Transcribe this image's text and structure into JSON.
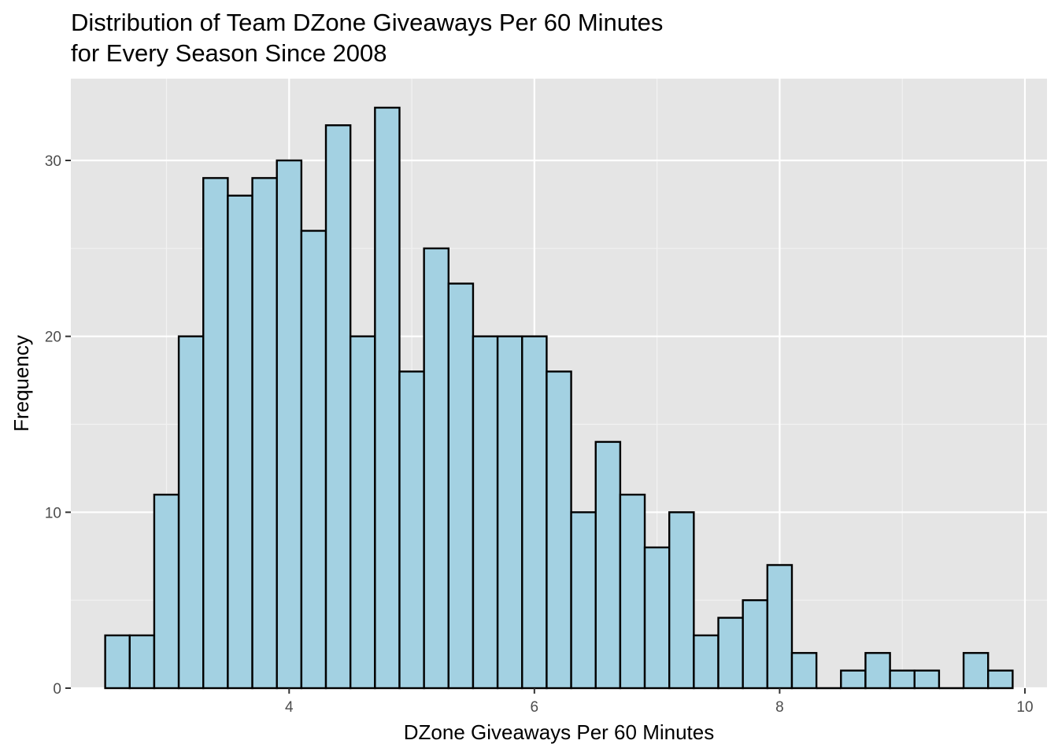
{
  "chart_data": {
    "type": "bar",
    "title": "Distribution of Team DZone Giveaways Per 60 Minutes",
    "subtitle": "for Every Season Since 2008",
    "xlabel": "DZone Giveaways Per 60 Minutes",
    "ylabel": "Frequency",
    "xlim": [
      2.22,
      10.18
    ],
    "ylim": [
      0,
      34.65
    ],
    "x_ticks": [
      4,
      6,
      8,
      10
    ],
    "x_tick_labels": [
      "4",
      "6",
      "8",
      "10"
    ],
    "y_ticks": [
      0,
      10,
      20,
      30
    ],
    "y_tick_labels": [
      "0",
      "10",
      "20",
      "30"
    ],
    "grid": true,
    "legend": "none",
    "bin_width": 0.2,
    "bin_start": 2.5,
    "values": [
      3,
      3,
      11,
      20,
      29,
      28,
      29,
      30,
      26,
      32,
      20,
      33,
      18,
      25,
      23,
      20,
      20,
      20,
      18,
      10,
      14,
      11,
      8,
      10,
      3,
      4,
      5,
      7,
      2,
      0,
      1,
      2,
      1,
      1,
      0,
      2,
      1
    ],
    "colors": {
      "bar_fill": "#a3d1e2",
      "bar_stroke": "#000000",
      "panel": "#e5e5e5",
      "grid_major": "#ffffff",
      "grid_minor": "#f2f2f2"
    }
  }
}
